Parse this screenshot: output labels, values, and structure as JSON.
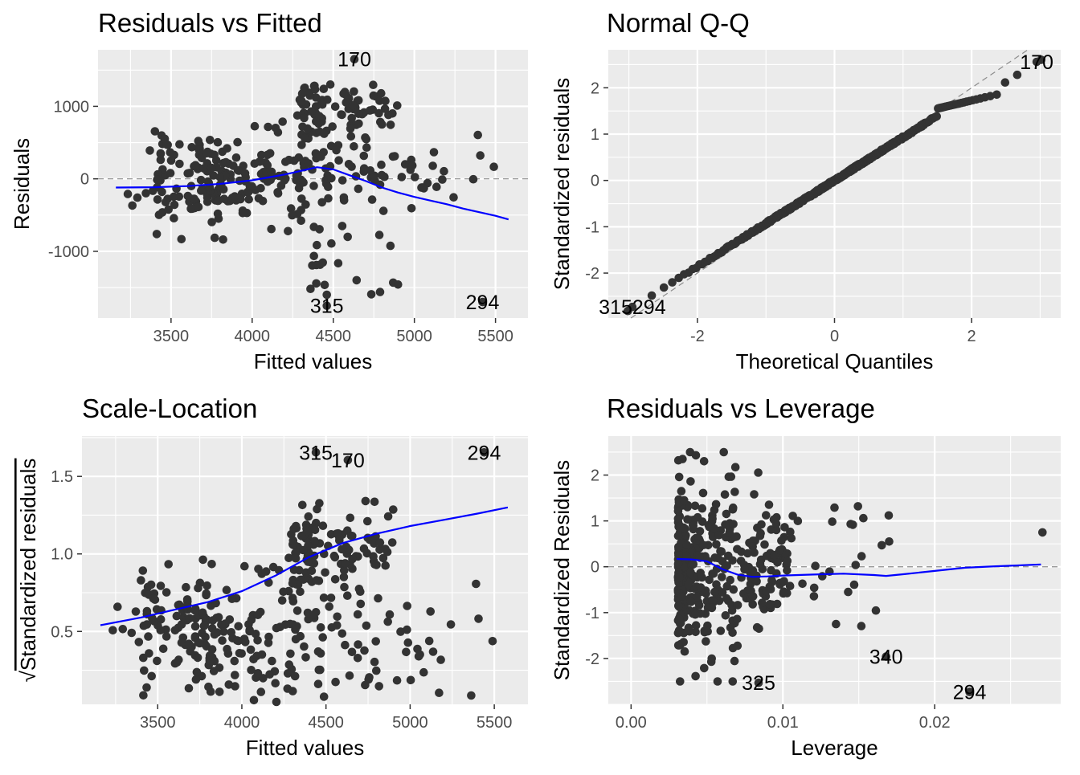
{
  "chart_data": [
    {
      "id": "rvf",
      "type": "scatter",
      "title": "Residuals vs Fitted",
      "xlabel": "Fitted values",
      "ylabel": "Residuals",
      "xlim": [
        3050,
        5700
      ],
      "ylim": [
        -1920,
        1780
      ],
      "xticks": [
        3500,
        4000,
        4500,
        5000,
        5500
      ],
      "xtick_labels": [
        "3500",
        "4000",
        "4500",
        "5000",
        "5500"
      ],
      "yticks": [
        -1000,
        0,
        1000
      ],
      "ytick_labels": [
        "-1000",
        "0",
        "1000"
      ],
      "grid": true,
      "reference_line": 0,
      "smooth": {
        "x": [
          3160,
          3400,
          3600,
          3800,
          4000,
          4200,
          4300,
          4400,
          4500,
          4600,
          4700,
          4800,
          4900,
          5000,
          5100,
          5200,
          5300,
          5400,
          5500,
          5580
        ],
        "y": [
          -120,
          -115,
          -100,
          -70,
          -20,
          60,
          110,
          160,
          130,
          50,
          -30,
          -120,
          -190,
          -250,
          -300,
          -350,
          -410,
          -460,
          -510,
          -560
        ]
      },
      "point_labels": [
        {
          "text": "170",
          "x": 4630,
          "y": 1650
        },
        {
          "text": "315",
          "x": 4460,
          "y": -1750
        },
        {
          "text": "294",
          "x": 5420,
          "y": -1700
        }
      ],
      "point_seed": 11
    },
    {
      "id": "qq",
      "type": "scatter",
      "title": "Normal Q-Q",
      "xlabel": "Theoretical Quantiles",
      "ylabel": "Standardized residuals",
      "xlim": [
        -3.3,
        3.3
      ],
      "ylim": [
        -2.97,
        2.82
      ],
      "xticks": [
        -2,
        0,
        2
      ],
      "xtick_labels": [
        "-2",
        "0",
        "2"
      ],
      "yticks": [
        -2,
        -1,
        0,
        1,
        2
      ],
      "ytick_labels": [
        "-2",
        "-1",
        "0",
        "1",
        "2"
      ],
      "grid": true,
      "reference_line": "y=x",
      "point_labels": [
        {
          "text": "170",
          "x": 2.95,
          "y": 2.56
        },
        {
          "text": "315294",
          "x": -2.95,
          "y": -2.73
        }
      ],
      "point_seed": 23
    },
    {
      "id": "sl",
      "type": "scatter",
      "title": "Scale-Location",
      "xlabel": "Fitted values",
      "ylabel": "Standardized residuals",
      "ylabel_prefix": "√",
      "xlim": [
        3050,
        5700
      ],
      "ylim": [
        0.03,
        1.76
      ],
      "xticks": [
        3500,
        4000,
        4500,
        5000,
        5500
      ],
      "xtick_labels": [
        "3500",
        "4000",
        "4500",
        "5000",
        "5500"
      ],
      "yticks": [
        0.5,
        1.0,
        1.5
      ],
      "ytick_labels": [
        "0.5",
        "1.0",
        "1.5"
      ],
      "grid": true,
      "smooth": {
        "x": [
          3160,
          3400,
          3600,
          3800,
          4000,
          4200,
          4400,
          4600,
          4800,
          5000,
          5200,
          5400,
          5580
        ],
        "y": [
          0.54,
          0.59,
          0.64,
          0.69,
          0.76,
          0.86,
          0.98,
          1.07,
          1.13,
          1.18,
          1.22,
          1.26,
          1.3
        ]
      },
      "point_labels": [
        {
          "text": "315",
          "x": 4440,
          "y": 1.655
        },
        {
          "text": "170",
          "x": 4630,
          "y": 1.605
        },
        {
          "text": "294",
          "x": 5440,
          "y": 1.655
        }
      ],
      "point_seed": 37
    },
    {
      "id": "rvl",
      "type": "scatter",
      "title": "Residuals vs Leverage",
      "xlabel": "Leverage",
      "ylabel": "Standardized Residuals",
      "xlim": [
        -0.0015,
        0.0283
      ],
      "ylim": [
        -3.0,
        2.85
      ],
      "xticks": [
        0.0,
        0.01,
        0.02
      ],
      "xtick_labels": [
        "0.00",
        "0.01",
        "0.02"
      ],
      "yticks": [
        -2,
        -1,
        0,
        1,
        2
      ],
      "ytick_labels": [
        "-2",
        "-1",
        "0",
        "1",
        "2"
      ],
      "grid": true,
      "reference_line": 0,
      "smooth": {
        "x": [
          0.003,
          0.004,
          0.005,
          0.006,
          0.007,
          0.008,
          0.009,
          0.01,
          0.012,
          0.014,
          0.016,
          0.0168,
          0.018,
          0.02,
          0.022,
          0.024,
          0.027
        ],
        "y": [
          0.17,
          0.16,
          0.12,
          -0.05,
          -0.17,
          -0.22,
          -0.21,
          -0.19,
          -0.17,
          -0.15,
          -0.18,
          -0.2,
          -0.16,
          -0.09,
          -0.02,
          0.01,
          0.05
        ]
      },
      "point_labels": [
        {
          "text": "340",
          "x": 0.0168,
          "y": -1.96
        },
        {
          "text": "325",
          "x": 0.0084,
          "y": -2.53
        },
        {
          "text": "294",
          "x": 0.0223,
          "y": -2.73
        }
      ],
      "point_seed": 53
    }
  ]
}
